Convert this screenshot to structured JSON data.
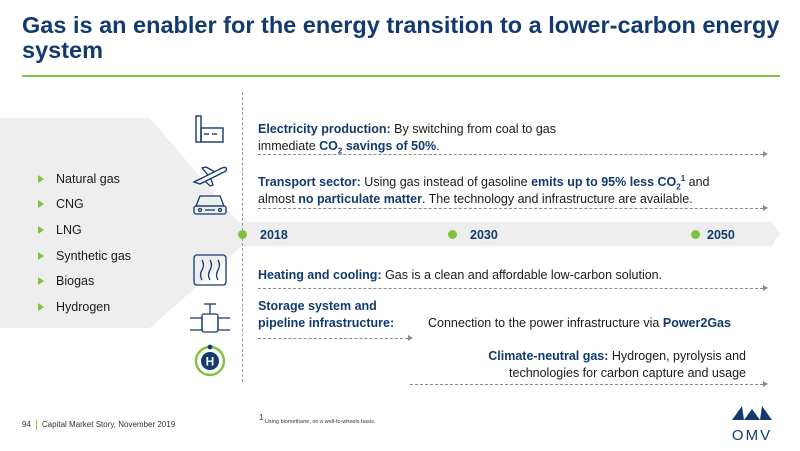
{
  "title": "Gas is an enabler for the energy transition to a lower-carbon energy system",
  "fuels": [
    "Natural gas",
    "CNG",
    "LNG",
    "Synthetic gas",
    "Biogas",
    "Hydrogen"
  ],
  "icons": [
    "power-plant-icon",
    "plane-icon",
    "car-icon",
    "heating-icon",
    "pipeline-valve-icon",
    "hydrogen-icon"
  ],
  "rows": {
    "electricity": {
      "label": "Electricity production:",
      "text1": " By switching from coal to gas",
      "text2": "immediate ",
      "co2": "CO",
      "co2_sub": "2",
      "savings": " savings of 50%",
      "end": "."
    },
    "transport": {
      "label": "Transport sector:",
      "text1": " Using gas instead of gasoline ",
      "emits": "emits up to 95% less CO",
      "co2_sub": "2",
      "sup": "1",
      "and": " and",
      "almost": "almost ",
      "pm": "no particulate matter",
      "rest": ". The technology and infrastructure are available."
    },
    "heating": {
      "label": "Heating and cooling:",
      "text": " Gas is a clean and affordable low-carbon solution."
    },
    "storage": {
      "label_line1": "Storage system and",
      "label_line2": "pipeline infrastructure:",
      "text": "Connection to the power infrastructure via ",
      "power2gas": "Power2Gas"
    },
    "climate": {
      "label": "Climate-neutral gas:",
      "text1": " Hydrogen, pyrolysis and",
      "text2": "technologies for carbon capture and usage"
    }
  },
  "timeline": [
    "2018",
    "2030",
    "2050"
  ],
  "footer": {
    "page": "94",
    "doc": "Capital Market Story, November 2019",
    "footnote_mark": "1",
    "footnote": "Using biomethane, on a well-to-wheels basis.",
    "logo": "OMV"
  },
  "colors": {
    "navy": "#123a6e",
    "green": "#7fc241",
    "arrow": "#eeeeee"
  }
}
